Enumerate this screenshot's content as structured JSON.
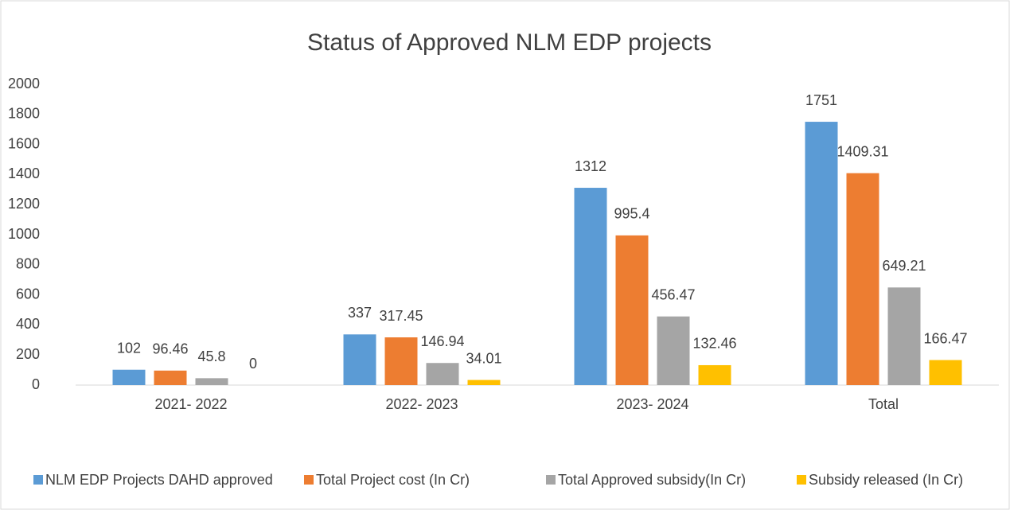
{
  "chart_data": {
    "type": "bar",
    "title": "Status of Approved NLM EDP projects",
    "categories": [
      "2021- 2022",
      "2022- 2023",
      "2023- 2024",
      "Total"
    ],
    "series": [
      {
        "name": "NLM EDP Projects DAHD approved",
        "color": "#5b9bd5",
        "values": [
          102,
          337,
          1312,
          1751
        ]
      },
      {
        "name": "Total Project cost (In Cr)",
        "color": "#ed7d31",
        "values": [
          96.46,
          317.45,
          995.4,
          1409.31
        ]
      },
      {
        "name": "Total Approved subsidy(In Cr)",
        "color": "#a5a5a5",
        "values": [
          45.8,
          146.94,
          456.47,
          649.21
        ]
      },
      {
        "name": "Subsidy released (In Cr)",
        "color": "#ffc000",
        "values": [
          0,
          34.01,
          132.46,
          166.47
        ]
      }
    ],
    "ylim": [
      0,
      2000
    ],
    "yticks": [
      0,
      200,
      400,
      600,
      800,
      1000,
      1200,
      1400,
      1600,
      1800,
      2000
    ],
    "grid": false,
    "legend": "bottom"
  }
}
